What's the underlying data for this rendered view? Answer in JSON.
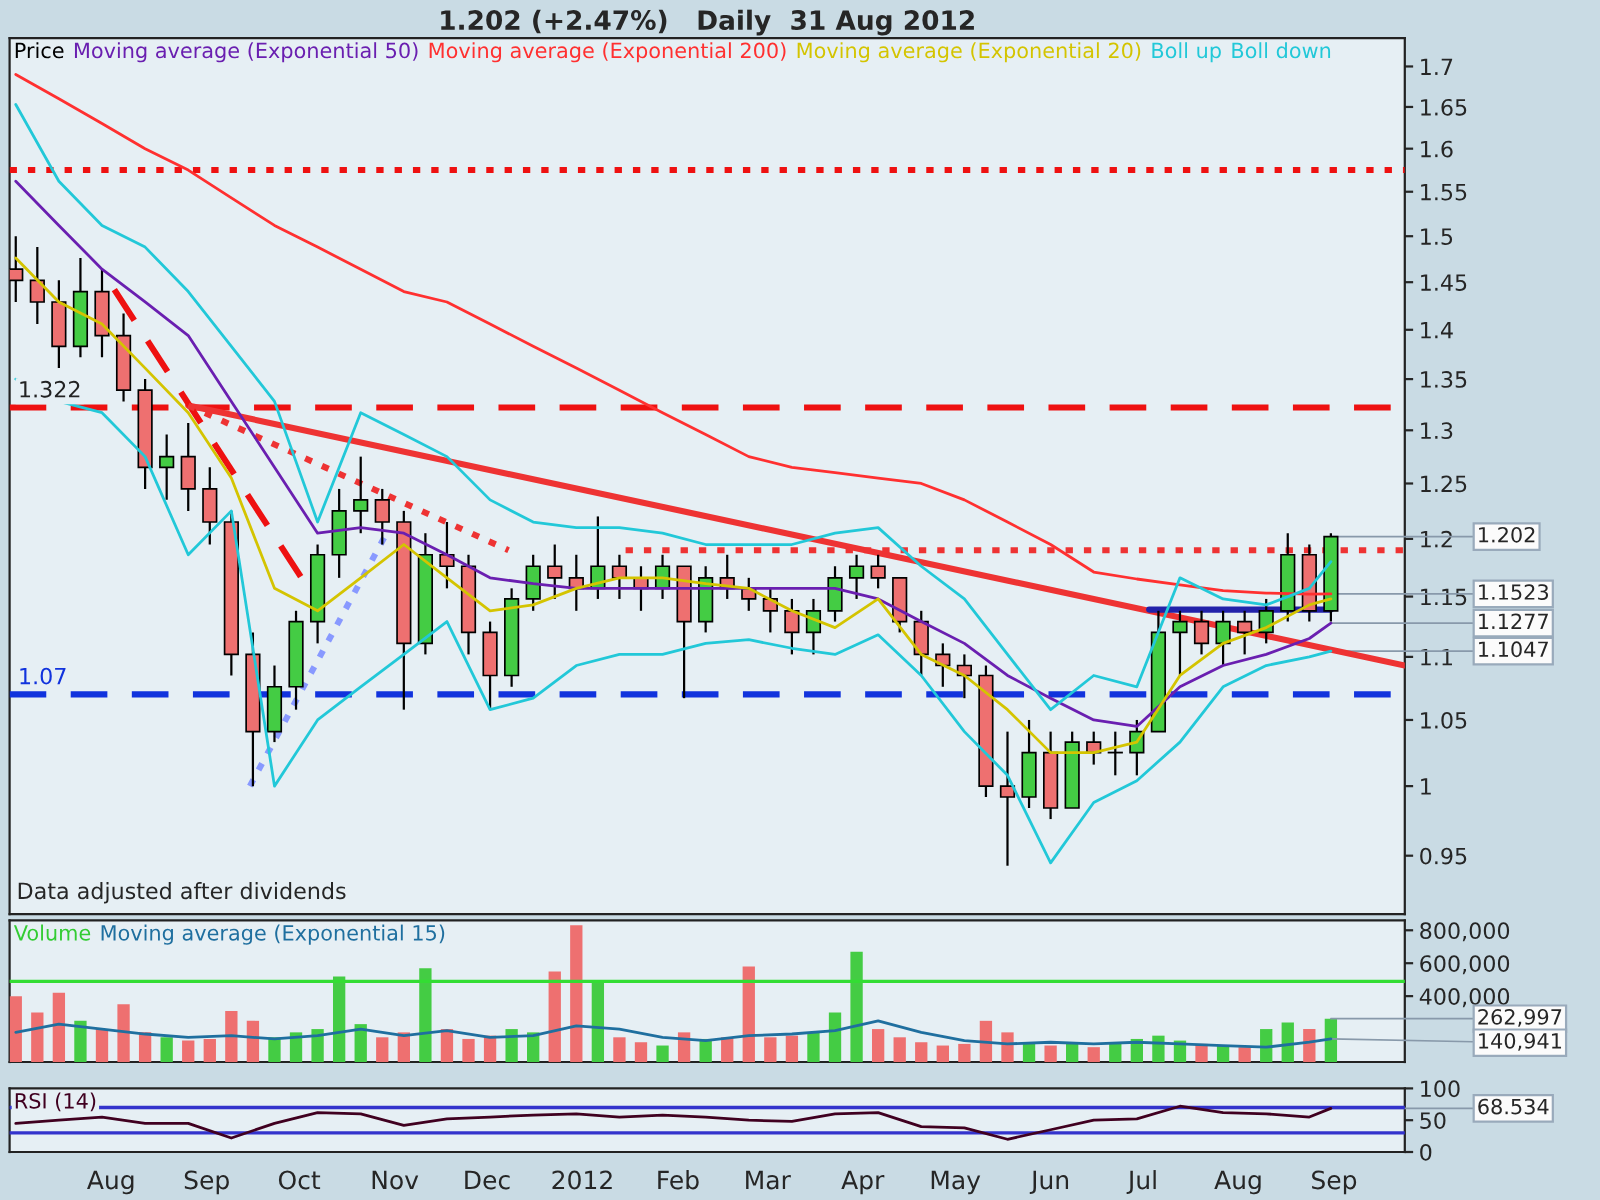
{
  "chart_data": [
    {
      "type": "candlestick",
      "title": "1.202 (+2.47%)   Daily  31 Aug 2012",
      "log": "y",
      "legend": "top left",
      "tick_labels": "y",
      "xlim": [
        "2011-06-29",
        "2012-09-24"
      ],
      "ylim": [
        0.91,
        1.736
      ],
      "yticks": [
        0.95,
        1,
        1.05,
        1.1,
        1.15,
        1.2,
        1.25,
        1.3,
        1.35,
        1.4,
        1.45,
        1.5,
        1.55,
        1.6,
        1.65,
        1.7
      ],
      "series": [
        {
          "name": "Price",
          "color": "#000000",
          "x": [
            "2011-07-01",
            "2011-07-08",
            "2011-07-15",
            "2011-07-22",
            "2011-07-29",
            "2011-08-05",
            "2011-08-12",
            "2011-08-19",
            "2011-08-26",
            "2011-09-02",
            "2011-09-09",
            "2011-09-16",
            "2011-09-23",
            "2011-09-30",
            "2011-10-07",
            "2011-10-14",
            "2011-10-21",
            "2011-10-28",
            "2011-11-04",
            "2011-11-11",
            "2011-11-18",
            "2011-11-25",
            "2011-12-02",
            "2011-12-09",
            "2011-12-16",
            "2011-12-23",
            "2011-12-30",
            "2012-01-06",
            "2012-01-13",
            "2012-01-20",
            "2012-01-27",
            "2012-02-03",
            "2012-02-10",
            "2012-02-17",
            "2012-02-24",
            "2012-03-02",
            "2012-03-09",
            "2012-03-16",
            "2012-03-23",
            "2012-03-30",
            "2012-04-06",
            "2012-04-13",
            "2012-04-20",
            "2012-04-27",
            "2012-05-04",
            "2012-05-11",
            "2012-05-18",
            "2012-05-25",
            "2012-06-01",
            "2012-06-08",
            "2012-06-15",
            "2012-06-22",
            "2012-06-29",
            "2012-07-06",
            "2012-07-13",
            "2012-07-20",
            "2012-07-27",
            "2012-08-03",
            "2012-08-10",
            "2012-08-17",
            "2012-08-24",
            "2012-08-31"
          ],
          "ohlc": [
            [
              1.464,
              1.5,
              1.429,
              1.452
            ],
            [
              1.452,
              1.488,
              1.406,
              1.429
            ],
            [
              1.429,
              1.452,
              1.361,
              1.383
            ],
            [
              1.383,
              1.476,
              1.372,
              1.44
            ],
            [
              1.44,
              1.464,
              1.372,
              1.394
            ],
            [
              1.394,
              1.417,
              1.328,
              1.339
            ],
            [
              1.339,
              1.35,
              1.245,
              1.265
            ],
            [
              1.265,
              1.296,
              1.235,
              1.275
            ],
            [
              1.275,
              1.307,
              1.225,
              1.245
            ],
            [
              1.245,
              1.265,
              1.195,
              1.215
            ],
            [
              1.215,
              1.225,
              1.085,
              1.102
            ],
            [
              1.102,
              1.12,
              1.0,
              1.041
            ],
            [
              1.041,
              1.093,
              1.033,
              1.076
            ],
            [
              1.076,
              1.138,
              1.058,
              1.129
            ],
            [
              1.129,
              1.195,
              1.111,
              1.186
            ],
            [
              1.186,
              1.245,
              1.166,
              1.225
            ],
            [
              1.225,
              1.275,
              1.205,
              1.235
            ],
            [
              1.235,
              1.245,
              1.195,
              1.215
            ],
            [
              1.215,
              1.225,
              1.058,
              1.111
            ],
            [
              1.111,
              1.205,
              1.102,
              1.186
            ],
            [
              1.186,
              1.215,
              1.157,
              1.176
            ],
            [
              1.176,
              1.186,
              1.102,
              1.12
            ],
            [
              1.12,
              1.129,
              1.058,
              1.085
            ],
            [
              1.085,
              1.157,
              1.076,
              1.148
            ],
            [
              1.148,
              1.186,
              1.138,
              1.176
            ],
            [
              1.176,
              1.195,
              1.148,
              1.166
            ],
            [
              1.166,
              1.186,
              1.138,
              1.157
            ],
            [
              1.157,
              1.22,
              1.148,
              1.176
            ],
            [
              1.176,
              1.186,
              1.148,
              1.166
            ],
            [
              1.166,
              1.176,
              1.138,
              1.157
            ],
            [
              1.157,
              1.186,
              1.148,
              1.176
            ],
            [
              1.176,
              1.176,
              1.067,
              1.129
            ],
            [
              1.129,
              1.176,
              1.12,
              1.166
            ],
            [
              1.166,
              1.186,
              1.148,
              1.157
            ],
            [
              1.157,
              1.166,
              1.138,
              1.148
            ],
            [
              1.148,
              1.157,
              1.12,
              1.138
            ],
            [
              1.138,
              1.148,
              1.102,
              1.12
            ],
            [
              1.12,
              1.148,
              1.102,
              1.138
            ],
            [
              1.138,
              1.176,
              1.129,
              1.166
            ],
            [
              1.166,
              1.186,
              1.148,
              1.176
            ],
            [
              1.176,
              1.186,
              1.157,
              1.166
            ],
            [
              1.166,
              1.166,
              1.12,
              1.129
            ],
            [
              1.129,
              1.138,
              1.085,
              1.102
            ],
            [
              1.102,
              1.111,
              1.076,
              1.093
            ],
            [
              1.093,
              1.102,
              1.067,
              1.085
            ],
            [
              1.085,
              1.093,
              0.992,
              1.0
            ],
            [
              1.0,
              1.041,
              0.943,
              0.992
            ],
            [
              0.992,
              1.05,
              0.984,
              1.025
            ],
            [
              1.025,
              1.041,
              0.976,
              0.984
            ],
            [
              0.984,
              1.041,
              0.984,
              1.033
            ],
            [
              1.033,
              1.041,
              1.016,
              1.025
            ],
            [
              1.025,
              1.041,
              1.008,
              1.025
            ],
            [
              1.025,
              1.05,
              1.008,
              1.041
            ],
            [
              1.041,
              1.138,
              1.041,
              1.12
            ],
            [
              1.12,
              1.138,
              1.085,
              1.129
            ],
            [
              1.129,
              1.138,
              1.102,
              1.111
            ],
            [
              1.111,
              1.138,
              1.093,
              1.129
            ],
            [
              1.129,
              1.138,
              1.102,
              1.12
            ],
            [
              1.12,
              1.148,
              1.111,
              1.138
            ],
            [
              1.138,
              1.205,
              1.129,
              1.186
            ],
            [
              1.186,
              1.195,
              1.129,
              1.138
            ],
            [
              1.138,
              1.205,
              1.129,
              1.202
            ]
          ],
          "colors": [
            "#ee7070",
            "#ee7070",
            "#ee7070",
            "#44cc44",
            "#ee7070",
            "#ee7070",
            "#ee7070",
            "#44cc44",
            "#ee7070",
            "#ee7070",
            "#ee7070",
            "#ee7070",
            "#44cc44",
            "#44cc44",
            "#44cc44",
            "#44cc44",
            "#44cc44",
            "#ee7070",
            "#ee7070",
            "#44cc44",
            "#ee7070",
            "#ee7070",
            "#ee7070",
            "#44cc44",
            "#44cc44",
            "#ee7070",
            "#ee7070",
            "#44cc44",
            "#ee7070",
            "#ee7070",
            "#44cc44",
            "#ee7070",
            "#44cc44",
            "#ee7070",
            "#ee7070",
            "#ee7070",
            "#ee7070",
            "#44cc44",
            "#44cc44",
            "#44cc44",
            "#ee7070",
            "#ee7070",
            "#ee7070",
            "#ee7070",
            "#ee7070",
            "#ee7070",
            "#ee7070",
            "#44cc44",
            "#ee7070",
            "#44cc44",
            "#ee7070",
            "#44cc44",
            "#44cc44",
            "#44cc44",
            "#44cc44",
            "#ee7070",
            "#44cc44",
            "#ee7070",
            "#44cc44",
            "#44cc44",
            "#ee7070",
            "#44cc44"
          ]
        },
        {
          "name": "Moving average (Exponential 50)",
          "type": "line",
          "color": "#6a1fb0",
          "x": [
            "2011-07-01",
            "2011-07-15",
            "2011-07-29",
            "2011-08-12",
            "2011-08-26",
            "2011-09-09",
            "2011-09-23",
            "2011-10-07",
            "2011-10-21",
            "2011-11-04",
            "2011-11-18",
            "2011-12-02",
            "2011-12-16",
            "2011-12-30",
            "2012-01-13",
            "2012-01-27",
            "2012-02-10",
            "2012-02-24",
            "2012-03-09",
            "2012-03-23",
            "2012-04-06",
            "2012-04-20",
            "2012-05-04",
            "2012-05-18",
            "2012-06-01",
            "2012-06-15",
            "2012-06-29",
            "2012-07-13",
            "2012-07-27",
            "2012-08-10",
            "2012-08-24",
            "2012-08-31"
          ],
          "values": [
            1.562,
            1.512,
            1.464,
            1.429,
            1.394,
            1.328,
            1.265,
            1.205,
            1.21,
            1.205,
            1.186,
            1.166,
            1.161,
            1.157,
            1.157,
            1.157,
            1.157,
            1.157,
            1.157,
            1.157,
            1.148,
            1.129,
            1.111,
            1.085,
            1.067,
            1.05,
            1.045,
            1.076,
            1.093,
            1.102,
            1.115,
            1.1277
          ]
        },
        {
          "name": "Moving average (Exponential 200)",
          "type": "line",
          "color": "#ff3030",
          "x": [
            "2011-07-01",
            "2011-07-15",
            "2011-07-29",
            "2011-08-12",
            "2011-08-26",
            "2011-09-09",
            "2011-09-23",
            "2011-10-07",
            "2011-10-21",
            "2011-11-04",
            "2011-11-18",
            "2011-12-02",
            "2011-12-16",
            "2011-12-30",
            "2012-01-13",
            "2012-01-27",
            "2012-02-10",
            "2012-02-24",
            "2012-03-09",
            "2012-03-23",
            "2012-04-06",
            "2012-04-20",
            "2012-05-04",
            "2012-05-18",
            "2012-06-01",
            "2012-06-15",
            "2012-06-29",
            "2012-07-13",
            "2012-07-27",
            "2012-08-10",
            "2012-08-24",
            "2012-08-31"
          ],
          "values": [
            1.69,
            1.66,
            1.63,
            1.6,
            1.575,
            1.543,
            1.512,
            1.488,
            1.464,
            1.44,
            1.429,
            1.406,
            1.383,
            1.361,
            1.339,
            1.317,
            1.296,
            1.275,
            1.265,
            1.26,
            1.255,
            1.25,
            1.235,
            1.215,
            1.195,
            1.171,
            1.165,
            1.16,
            1.155,
            1.153,
            1.152,
            1.1523
          ]
        },
        {
          "name": "Moving average (Exponential 20)",
          "type": "line",
          "color": "#d4c400",
          "x": [
            "2011-07-01",
            "2011-07-15",
            "2011-07-29",
            "2011-08-12",
            "2011-08-26",
            "2011-09-09",
            "2011-09-23",
            "2011-10-07",
            "2011-10-21",
            "2011-11-04",
            "2011-11-18",
            "2011-12-02",
            "2011-12-16",
            "2011-12-30",
            "2012-01-13",
            "2012-01-27",
            "2012-02-10",
            "2012-02-24",
            "2012-03-09",
            "2012-03-23",
            "2012-04-06",
            "2012-04-20",
            "2012-05-04",
            "2012-05-18",
            "2012-06-01",
            "2012-06-15",
            "2012-06-29",
            "2012-07-13",
            "2012-07-27",
            "2012-08-10",
            "2012-08-24",
            "2012-08-31"
          ],
          "values": [
            1.476,
            1.429,
            1.406,
            1.361,
            1.317,
            1.255,
            1.157,
            1.138,
            1.166,
            1.195,
            1.166,
            1.138,
            1.143,
            1.157,
            1.166,
            1.166,
            1.161,
            1.157,
            1.138,
            1.124,
            1.148,
            1.102,
            1.085,
            1.058,
            1.025,
            1.025,
            1.033,
            1.085,
            1.111,
            1.124,
            1.143,
            1.148
          ]
        },
        {
          "name": "Boll up",
          "type": "line",
          "color": "#22c8d8",
          "x": [
            "2011-07-01",
            "2011-07-15",
            "2011-07-29",
            "2011-08-12",
            "2011-08-26",
            "2011-09-09",
            "2011-09-23",
            "2011-10-07",
            "2011-10-21",
            "2011-11-04",
            "2011-11-18",
            "2011-12-02",
            "2011-12-16",
            "2011-12-30",
            "2012-01-13",
            "2012-01-27",
            "2012-02-10",
            "2012-02-24",
            "2012-03-09",
            "2012-03-23",
            "2012-04-06",
            "2012-04-20",
            "2012-05-04",
            "2012-05-18",
            "2012-06-01",
            "2012-06-15",
            "2012-06-29",
            "2012-07-13",
            "2012-07-27",
            "2012-08-10",
            "2012-08-24",
            "2012-08-31"
          ],
          "values": [
            1.653,
            1.562,
            1.512,
            1.488,
            1.44,
            1.383,
            1.328,
            1.215,
            1.317,
            1.296,
            1.275,
            1.235,
            1.215,
            1.21,
            1.21,
            1.205,
            1.195,
            1.195,
            1.195,
            1.205,
            1.21,
            1.176,
            1.148,
            1.102,
            1.058,
            1.085,
            1.076,
            1.166,
            1.148,
            1.143,
            1.157,
            1.18
          ]
        },
        {
          "name": "Boll down",
          "type": "line",
          "color": "#22c8d8",
          "x": [
            "2011-07-01",
            "2011-07-15",
            "2011-07-29",
            "2011-08-12",
            "2011-08-26",
            "2011-09-09",
            "2011-09-23",
            "2011-10-07",
            "2011-10-21",
            "2011-11-04",
            "2011-11-18",
            "2011-12-02",
            "2011-12-16",
            "2011-12-30",
            "2012-01-13",
            "2012-01-27",
            "2012-02-10",
            "2012-02-24",
            "2012-03-09",
            "2012-03-23",
            "2012-04-06",
            "2012-04-20",
            "2012-05-04",
            "2012-05-18",
            "2012-06-01",
            "2012-06-15",
            "2012-06-29",
            "2012-07-13",
            "2012-07-27",
            "2012-08-10",
            "2012-08-24",
            "2012-08-31"
          ],
          "values": [
            1.35,
            1.328,
            1.317,
            1.275,
            1.186,
            1.225,
            1.0,
            1.05,
            1.076,
            1.102,
            1.129,
            1.058,
            1.067,
            1.093,
            1.102,
            1.102,
            1.111,
            1.114,
            1.107,
            1.102,
            1.118,
            1.085,
            1.041,
            1.008,
            0.945,
            0.988,
            1.004,
            1.033,
            1.076,
            1.093,
            1.1,
            1.1047
          ]
        },
        {
          "type": "line",
          "color": "#ee3333",
          "line_style": "solid",
          "x": [
            "2011-08-26",
            "2012-09-24"
          ],
          "values": [
            1.324,
            1.093
          ]
        },
        {
          "type": "line",
          "color": "#ee1111",
          "line_style": "dashed",
          "x": [
            "2011-08-02",
            "2011-10-02"
          ],
          "values": [
            1.442,
            1.165
          ]
        },
        {
          "type": "line",
          "color": "#ee3333",
          "line_style": "dotted",
          "x": [
            "2011-08-26",
            "2011-12-08"
          ],
          "values": [
            1.324,
            1.19
          ]
        },
        {
          "type": "line",
          "color": "#ee3333",
          "line_style": "dotted",
          "x": [
            "2012-01-15",
            "2012-09-24"
          ],
          "values": [
            1.19,
            1.19
          ]
        },
        {
          "type": "line",
          "color": "#8899ff",
          "line_style": "dotted",
          "x": [
            "2011-09-15",
            "2011-10-29"
          ],
          "values": [
            1.0,
            1.203
          ]
        },
        {
          "type": "line",
          "color": "#2222aa",
          "line_style": "solid",
          "x": [
            "2012-07-03",
            "2012-08-31"
          ],
          "values": [
            1.139,
            1.139
          ]
        }
      ],
      "ref_lines": [
        {
          "axis": "y",
          "value": 1.575,
          "color": "#ee1111",
          "line_style": "dotted"
        },
        {
          "axis": "y",
          "value": 1.322,
          "label": "1.322",
          "color": "#ee1111",
          "line_style": "dashed"
        },
        {
          "axis": "y",
          "value": 1.07,
          "label": "1.07",
          "color": "#1133dd",
          "line_style": "dashed"
        }
      ],
      "annotations": [
        "Data adjusted after dividends",
        {
          "text": "1.202",
          "x": "2012-08-31",
          "y": 1.202
        },
        {
          "text": "1.1523",
          "x": "2012-08-31",
          "y": 1.1523
        },
        {
          "text": "1.1277",
          "x": "2012-08-31",
          "y": 1.1277
        },
        {
          "text": "1.1047",
          "x": "2012-08-31",
          "y": 1.1047
        }
      ]
    },
    {
      "type": "bar",
      "legend": "top left",
      "tick_labels": "y",
      "xlim": [
        "2011-06-29",
        "2012-09-24"
      ],
      "ylim": [
        0,
        860000
      ],
      "yticks": [
        {
          "value": 400000,
          "label": "400,000"
        },
        {
          "value": 600000,
          "label": "600,000"
        },
        {
          "value": 800000,
          "label": "800,000"
        }
      ],
      "series": [
        {
          "name": "Volume",
          "color": "#33cc33",
          "x": [
            "2011-07-01",
            "2011-07-08",
            "2011-07-15",
            "2011-07-22",
            "2011-07-29",
            "2011-08-05",
            "2011-08-12",
            "2011-08-19",
            "2011-08-26",
            "2011-09-02",
            "2011-09-09",
            "2011-09-16",
            "2011-09-23",
            "2011-09-30",
            "2011-10-07",
            "2011-10-14",
            "2011-10-21",
            "2011-10-28",
            "2011-11-04",
            "2011-11-11",
            "2011-11-18",
            "2011-11-25",
            "2011-12-02",
            "2011-12-09",
            "2011-12-16",
            "2011-12-23",
            "2011-12-30",
            "2012-01-06",
            "2012-01-13",
            "2012-01-20",
            "2012-01-27",
            "2012-02-03",
            "2012-02-10",
            "2012-02-17",
            "2012-02-24",
            "2012-03-02",
            "2012-03-09",
            "2012-03-16",
            "2012-03-23",
            "2012-03-30",
            "2012-04-06",
            "2012-04-13",
            "2012-04-20",
            "2012-04-27",
            "2012-05-04",
            "2012-05-11",
            "2012-05-18",
            "2012-05-25",
            "2012-06-01",
            "2012-06-08",
            "2012-06-15",
            "2012-06-22",
            "2012-06-29",
            "2012-07-06",
            "2012-07-13",
            "2012-07-20",
            "2012-07-27",
            "2012-08-03",
            "2012-08-10",
            "2012-08-17",
            "2012-08-24",
            "2012-08-31"
          ],
          "values": [
            400000,
            300000,
            420000,
            250000,
            200000,
            350000,
            180000,
            150000,
            130000,
            140000,
            310000,
            250000,
            150000,
            180000,
            200000,
            520000,
            230000,
            150000,
            180000,
            570000,
            200000,
            140000,
            160000,
            200000,
            180000,
            550000,
            830000,
            480000,
            150000,
            120000,
            100000,
            180000,
            140000,
            150000,
            580000,
            150000,
            160000,
            180000,
            300000,
            670000,
            200000,
            150000,
            120000,
            100000,
            110000,
            250000,
            180000,
            120000,
            100000,
            110000,
            90000,
            120000,
            140000,
            160000,
            130000,
            110000,
            100000,
            90000,
            200000,
            240000,
            200000,
            262997
          ],
          "colors": [
            "#ee7070",
            "#ee7070",
            "#ee7070",
            "#44cc44",
            "#ee7070",
            "#ee7070",
            "#ee7070",
            "#44cc44",
            "#ee7070",
            "#ee7070",
            "#ee7070",
            "#ee7070",
            "#44cc44",
            "#44cc44",
            "#44cc44",
            "#44cc44",
            "#44cc44",
            "#ee7070",
            "#ee7070",
            "#44cc44",
            "#ee7070",
            "#ee7070",
            "#ee7070",
            "#44cc44",
            "#44cc44",
            "#ee7070",
            "#ee7070",
            "#44cc44",
            "#ee7070",
            "#ee7070",
            "#44cc44",
            "#ee7070",
            "#44cc44",
            "#ee7070",
            "#ee7070",
            "#ee7070",
            "#ee7070",
            "#44cc44",
            "#44cc44",
            "#44cc44",
            "#ee7070",
            "#ee7070",
            "#ee7070",
            "#ee7070",
            "#ee7070",
            "#ee7070",
            "#ee7070",
            "#44cc44",
            "#ee7070",
            "#44cc44",
            "#ee7070",
            "#44cc44",
            "#44cc44",
            "#44cc44",
            "#44cc44",
            "#ee7070",
            "#44cc44",
            "#ee7070",
            "#44cc44",
            "#44cc44",
            "#ee7070",
            "#44cc44"
          ]
        },
        {
          "name": "Moving average (Exponential 15)",
          "type": "line",
          "color": "#1f6f9f",
          "x": [
            "2011-07-01",
            "2011-07-15",
            "2011-07-29",
            "2011-08-12",
            "2011-08-26",
            "2011-09-09",
            "2011-09-23",
            "2011-10-07",
            "2011-10-21",
            "2011-11-04",
            "2011-11-18",
            "2011-12-02",
            "2011-12-16",
            "2011-12-30",
            "2012-01-13",
            "2012-01-27",
            "2012-02-10",
            "2012-02-24",
            "2012-03-09",
            "2012-03-23",
            "2012-04-06",
            "2012-04-20",
            "2012-05-04",
            "2012-05-18",
            "2012-06-01",
            "2012-06-15",
            "2012-06-29",
            "2012-07-13",
            "2012-07-27",
            "2012-08-10",
            "2012-08-24",
            "2012-08-31"
          ],
          "values": [
            180000,
            230000,
            200000,
            170000,
            150000,
            160000,
            140000,
            160000,
            200000,
            160000,
            190000,
            150000,
            160000,
            220000,
            200000,
            150000,
            130000,
            160000,
            170000,
            190000,
            250000,
            180000,
            130000,
            110000,
            120000,
            110000,
            120000,
            110000,
            100000,
            90000,
            120000,
            140941
          ]
        }
      ],
      "ref_lines": [
        {
          "axis": "y",
          "value": 490000,
          "color": "#33dd33",
          "line_style": "solid"
        }
      ],
      "annotations": [
        {
          "text": "262,997",
          "x": "2012-08-31",
          "y": 262997
        },
        {
          "text": "140,941",
          "x": "2012-08-31",
          "y": 140941
        }
      ]
    },
    {
      "type": "line",
      "legend": "top left",
      "xlim": [
        "2011-06-29",
        "2012-09-24"
      ],
      "ylim": [
        0,
        100
      ],
      "yticks": [
        0,
        50,
        100
      ],
      "xticks": [
        {
          "value": "2011-08-01",
          "label": "Aug"
        },
        {
          "value": "2011-09-01",
          "label": "Sep"
        },
        {
          "value": "2011-10-01",
          "label": "Oct"
        },
        {
          "value": "2011-11-01",
          "label": "Nov"
        },
        {
          "value": "2011-12-01",
          "label": "Dec"
        },
        {
          "value": "2012-01-01",
          "label": "2012"
        },
        {
          "value": "2012-02-01",
          "label": "Feb"
        },
        {
          "value": "2012-03-01",
          "label": "Mar"
        },
        {
          "value": "2012-04-01",
          "label": "Apr"
        },
        {
          "value": "2012-05-01",
          "label": "May"
        },
        {
          "value": "2012-06-01",
          "label": "Jun"
        },
        {
          "value": "2012-07-01",
          "label": "Jul"
        },
        {
          "value": "2012-08-01",
          "label": "Aug"
        },
        {
          "value": "2012-09-01",
          "label": "Sep"
        }
      ],
      "series": [
        {
          "name": "RSI (14)",
          "color": "#400020",
          "x": [
            "2011-07-01",
            "2011-07-15",
            "2011-07-29",
            "2011-08-12",
            "2011-08-26",
            "2011-09-09",
            "2011-09-23",
            "2011-10-07",
            "2011-10-21",
            "2011-11-04",
            "2011-11-18",
            "2011-12-02",
            "2011-12-16",
            "2011-12-30",
            "2012-01-13",
            "2012-01-27",
            "2012-02-10",
            "2012-02-24",
            "2012-03-09",
            "2012-03-23",
            "2012-04-06",
            "2012-04-20",
            "2012-05-04",
            "2012-05-18",
            "2012-06-01",
            "2012-06-15",
            "2012-06-29",
            "2012-07-13",
            "2012-07-27",
            "2012-08-10",
            "2012-08-24",
            "2012-08-31"
          ],
          "values": [
            45,
            50,
            55,
            45,
            45,
            22,
            45,
            62,
            60,
            42,
            52,
            55,
            58,
            60,
            55,
            58,
            55,
            50,
            48,
            60,
            62,
            40,
            38,
            20,
            35,
            50,
            52,
            72,
            62,
            60,
            55,
            68.534
          ]
        }
      ],
      "ref_lines": [
        {
          "axis": "y",
          "value": 30,
          "color": "#3333cc",
          "line_style": "solid"
        },
        {
          "axis": "y",
          "value": 70,
          "color": "#3333cc",
          "line_style": "solid"
        }
      ],
      "annotations": [
        {
          "text": "68.534",
          "x": "2012-08-31",
          "y": 68.534
        }
      ]
    }
  ]
}
